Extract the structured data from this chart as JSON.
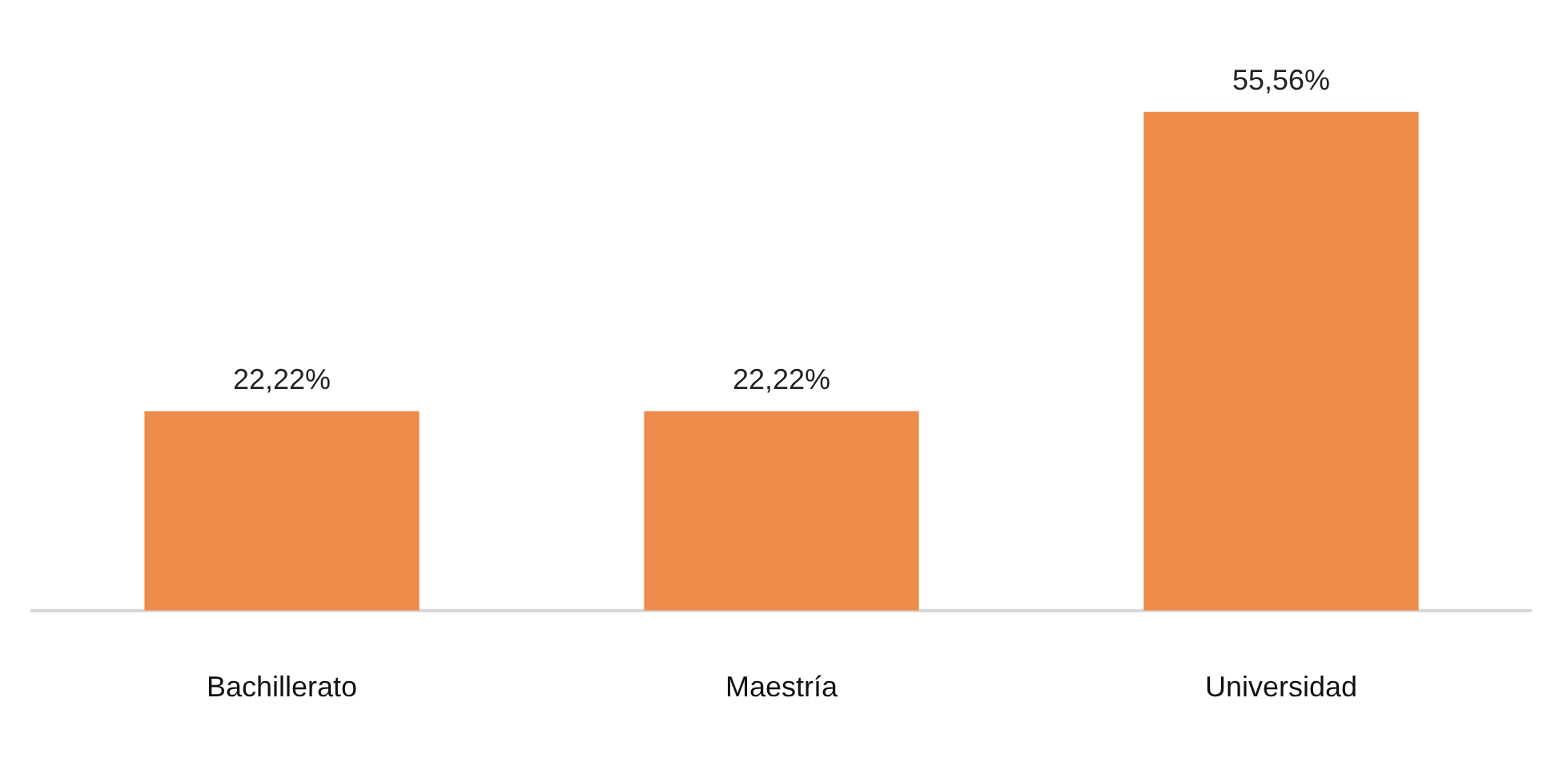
{
  "chart_data": {
    "type": "bar",
    "categories": [
      "Bachillerato",
      "Maestría",
      "Universidad"
    ],
    "values": [
      22.22,
      22.22,
      55.56
    ],
    "value_labels": [
      "22,22%",
      "22,22%",
      "55,56%"
    ],
    "color": "#ed8b4a",
    "grid": false,
    "legend": false,
    "tick_labels": "x"
  }
}
